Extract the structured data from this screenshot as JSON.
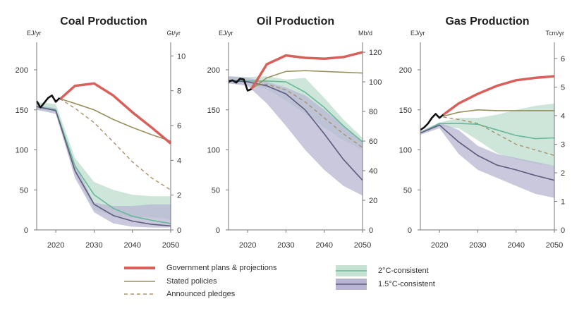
{
  "colors": {
    "government": "#d9605a",
    "stated": "#98905e",
    "announced": "#a8926a",
    "historical": "#111111",
    "band_2c": "#c6e2d2",
    "line_2c": "#67b89a",
    "band_15c": "#b7b5d1",
    "line_15c": "#5e5b7d",
    "axis_text": "#333333",
    "axis_line": "#777777"
  },
  "legend": {
    "government": "Government plans & projections",
    "stated": "Stated policies",
    "announced": "Announced pledges",
    "c2": "2°C-consistent",
    "c15": "1.5°C-consistent"
  },
  "chart_data": [
    {
      "type": "line",
      "title": "Coal Production",
      "ylabel": "EJ/yr",
      "ylabel_right": "Gt/yr",
      "xlim": [
        2015,
        2050
      ],
      "ylim": [
        0,
        230
      ],
      "xticks": [
        2020,
        2030,
        2040,
        2050
      ],
      "yticks": [
        0,
        50,
        100,
        150,
        200
      ],
      "yticks_right": [
        0,
        2,
        4,
        6,
        8,
        10
      ],
      "right_scale": 21.74,
      "historical": {
        "x": [
          2015,
          2016,
          2017,
          2018,
          2019,
          2020,
          2021
        ],
        "y": [
          161,
          153,
          159,
          165,
          168,
          160,
          165
        ]
      },
      "government": {
        "x": [
          2021,
          2025,
          2030,
          2035,
          2040,
          2045,
          2050
        ],
        "y": [
          163,
          180,
          183,
          168,
          147,
          128,
          108
        ]
      },
      "stated": {
        "x": [
          2021,
          2025,
          2030,
          2035,
          2040,
          2045,
          2050
        ],
        "y": [
          164,
          158,
          150,
          138,
          128,
          119,
          111
        ]
      },
      "announced": {
        "x": [
          2021,
          2025,
          2030,
          2035,
          2040,
          2045,
          2050
        ],
        "y": [
          164,
          152,
          134,
          110,
          85,
          65,
          50
        ]
      },
      "band_2c": {
        "x": [
          2015,
          2020,
          2025,
          2030,
          2035,
          2040,
          2045,
          2050
        ],
        "upper": [
          160,
          157,
          90,
          60,
          50,
          44,
          42,
          42
        ],
        "lower": [
          150,
          147,
          70,
          25,
          18,
          15,
          16,
          13
        ]
      },
      "line_2c": {
        "x": [
          2015,
          2020,
          2025,
          2030,
          2035,
          2040,
          2045,
          2050
        ],
        "y": [
          154,
          150,
          80,
          44,
          27,
          17,
          12,
          8
        ]
      },
      "band_15c": {
        "x": [
          2015,
          2020,
          2025,
          2030,
          2035,
          2040,
          2045,
          2050
        ],
        "upper": [
          156,
          152,
          82,
          34,
          30,
          30,
          32,
          32
        ],
        "lower": [
          150,
          145,
          65,
          22,
          8,
          4,
          3,
          3
        ]
      },
      "line_15c": {
        "x": [
          2015,
          2020,
          2025,
          2030,
          2035,
          2040,
          2045,
          2050
        ],
        "y": [
          154,
          149,
          74,
          32,
          18,
          11,
          7,
          5
        ]
      }
    },
    {
      "type": "line",
      "title": "Oil Production",
      "ylabel": "EJ/yr",
      "ylabel_right": "Mb/d",
      "xlim": [
        2015,
        2050
      ],
      "ylim": [
        0,
        230
      ],
      "xticks": [
        2020,
        2030,
        2040,
        2050
      ],
      "yticks": [
        0,
        50,
        100,
        150,
        200
      ],
      "yticks_right": [
        0,
        20,
        40,
        60,
        80,
        100,
        120
      ],
      "right_scale": 1.85,
      "historical": {
        "x": [
          2015,
          2016,
          2017,
          2018,
          2019,
          2020,
          2021
        ],
        "y": [
          185,
          187,
          184,
          189,
          188,
          174,
          176
        ]
      },
      "government": {
        "x": [
          2021,
          2025,
          2030,
          2035,
          2040,
          2045,
          2050
        ],
        "y": [
          176,
          207,
          218,
          215,
          214,
          216,
          222
        ]
      },
      "stated": {
        "x": [
          2021,
          2025,
          2030,
          2035,
          2040,
          2045,
          2050
        ],
        "y": [
          176,
          190,
          198,
          199,
          198,
          197,
          196
        ]
      },
      "announced": {
        "x": [
          2021,
          2025,
          2030,
          2035,
          2040,
          2045,
          2050
        ],
        "y": [
          180,
          182,
          175,
          160,
          140,
          120,
          103
        ]
      },
      "band_2c": {
        "x": [
          2015,
          2020,
          2025,
          2030,
          2035,
          2040,
          2045,
          2050
        ],
        "upper": [
          192,
          191,
          192,
          188,
          190,
          165,
          138,
          115
        ],
        "lower": [
          183,
          182,
          176,
          162,
          145,
          128,
          112,
          100
        ]
      },
      "line_2c": {
        "x": [
          2015,
          2020,
          2025,
          2030,
          2035,
          2040,
          2045,
          2050
        ],
        "y": [
          187,
          186,
          186,
          185,
          172,
          153,
          130,
          110
        ]
      },
      "band_15c": {
        "x": [
          2015,
          2020,
          2025,
          2030,
          2035,
          2040,
          2045,
          2050
        ],
        "upper": [
          192,
          190,
          185,
          178,
          168,
          150,
          130,
          110
        ],
        "lower": [
          183,
          180,
          158,
          130,
          100,
          75,
          55,
          43
        ]
      },
      "line_15c": {
        "x": [
          2015,
          2020,
          2025,
          2030,
          2035,
          2040,
          2045,
          2050
        ],
        "y": [
          187,
          185,
          180,
          170,
          150,
          120,
          88,
          62
        ]
      }
    },
    {
      "type": "line",
      "title": "Gas Production",
      "ylabel": "EJ/yr",
      "ylabel_right": "Tcm/yr",
      "xlim": [
        2015,
        2050
      ],
      "ylim": [
        0,
        230
      ],
      "xticks": [
        2020,
        2030,
        2040,
        2050
      ],
      "yticks": [
        0,
        50,
        100,
        150,
        200
      ],
      "yticks_right": [
        0,
        1,
        2,
        3,
        4,
        5,
        6
      ],
      "right_scale": 35.7,
      "historical": {
        "x": [
          2015,
          2016,
          2017,
          2018,
          2019,
          2020,
          2021
        ],
        "y": [
          125,
          128,
          133,
          140,
          145,
          140,
          144
        ]
      },
      "government": {
        "x": [
          2021,
          2025,
          2030,
          2035,
          2040,
          2045,
          2050
        ],
        "y": [
          144,
          158,
          170,
          180,
          187,
          190,
          192
        ]
      },
      "stated": {
        "x": [
          2021,
          2025,
          2030,
          2035,
          2040,
          2045,
          2050
        ],
        "y": [
          142,
          147,
          150,
          149,
          149,
          149,
          149
        ]
      },
      "announced": {
        "x": [
          2021,
          2025,
          2030,
          2035,
          2040,
          2045,
          2050
        ],
        "y": [
          141,
          138,
          133,
          120,
          107,
          100,
          93
        ]
      },
      "band_2c": {
        "x": [
          2015,
          2020,
          2025,
          2030,
          2035,
          2040,
          2045,
          2050
        ],
        "upper": [
          123,
          134,
          140,
          140,
          144,
          150,
          155,
          158
        ],
        "lower": [
          120,
          129,
          127,
          112,
          96,
          88,
          83,
          80
        ]
      },
      "line_2c": {
        "x": [
          2015,
          2020,
          2025,
          2030,
          2035,
          2040,
          2045,
          2050
        ],
        "y": [
          121,
          133,
          133,
          132,
          125,
          118,
          114,
          115
        ]
      },
      "band_15c": {
        "x": [
          2015,
          2020,
          2025,
          2030,
          2035,
          2040,
          2045,
          2050
        ],
        "upper": [
          123,
          134,
          125,
          105,
          95,
          90,
          85,
          80
        ],
        "lower": [
          119,
          127,
          95,
          75,
          65,
          55,
          45,
          40
        ]
      },
      "line_15c": {
        "x": [
          2015,
          2020,
          2025,
          2030,
          2035,
          2040,
          2045,
          2050
        ],
        "y": [
          121,
          131,
          110,
          93,
          81,
          75,
          68,
          62
        ]
      }
    }
  ]
}
